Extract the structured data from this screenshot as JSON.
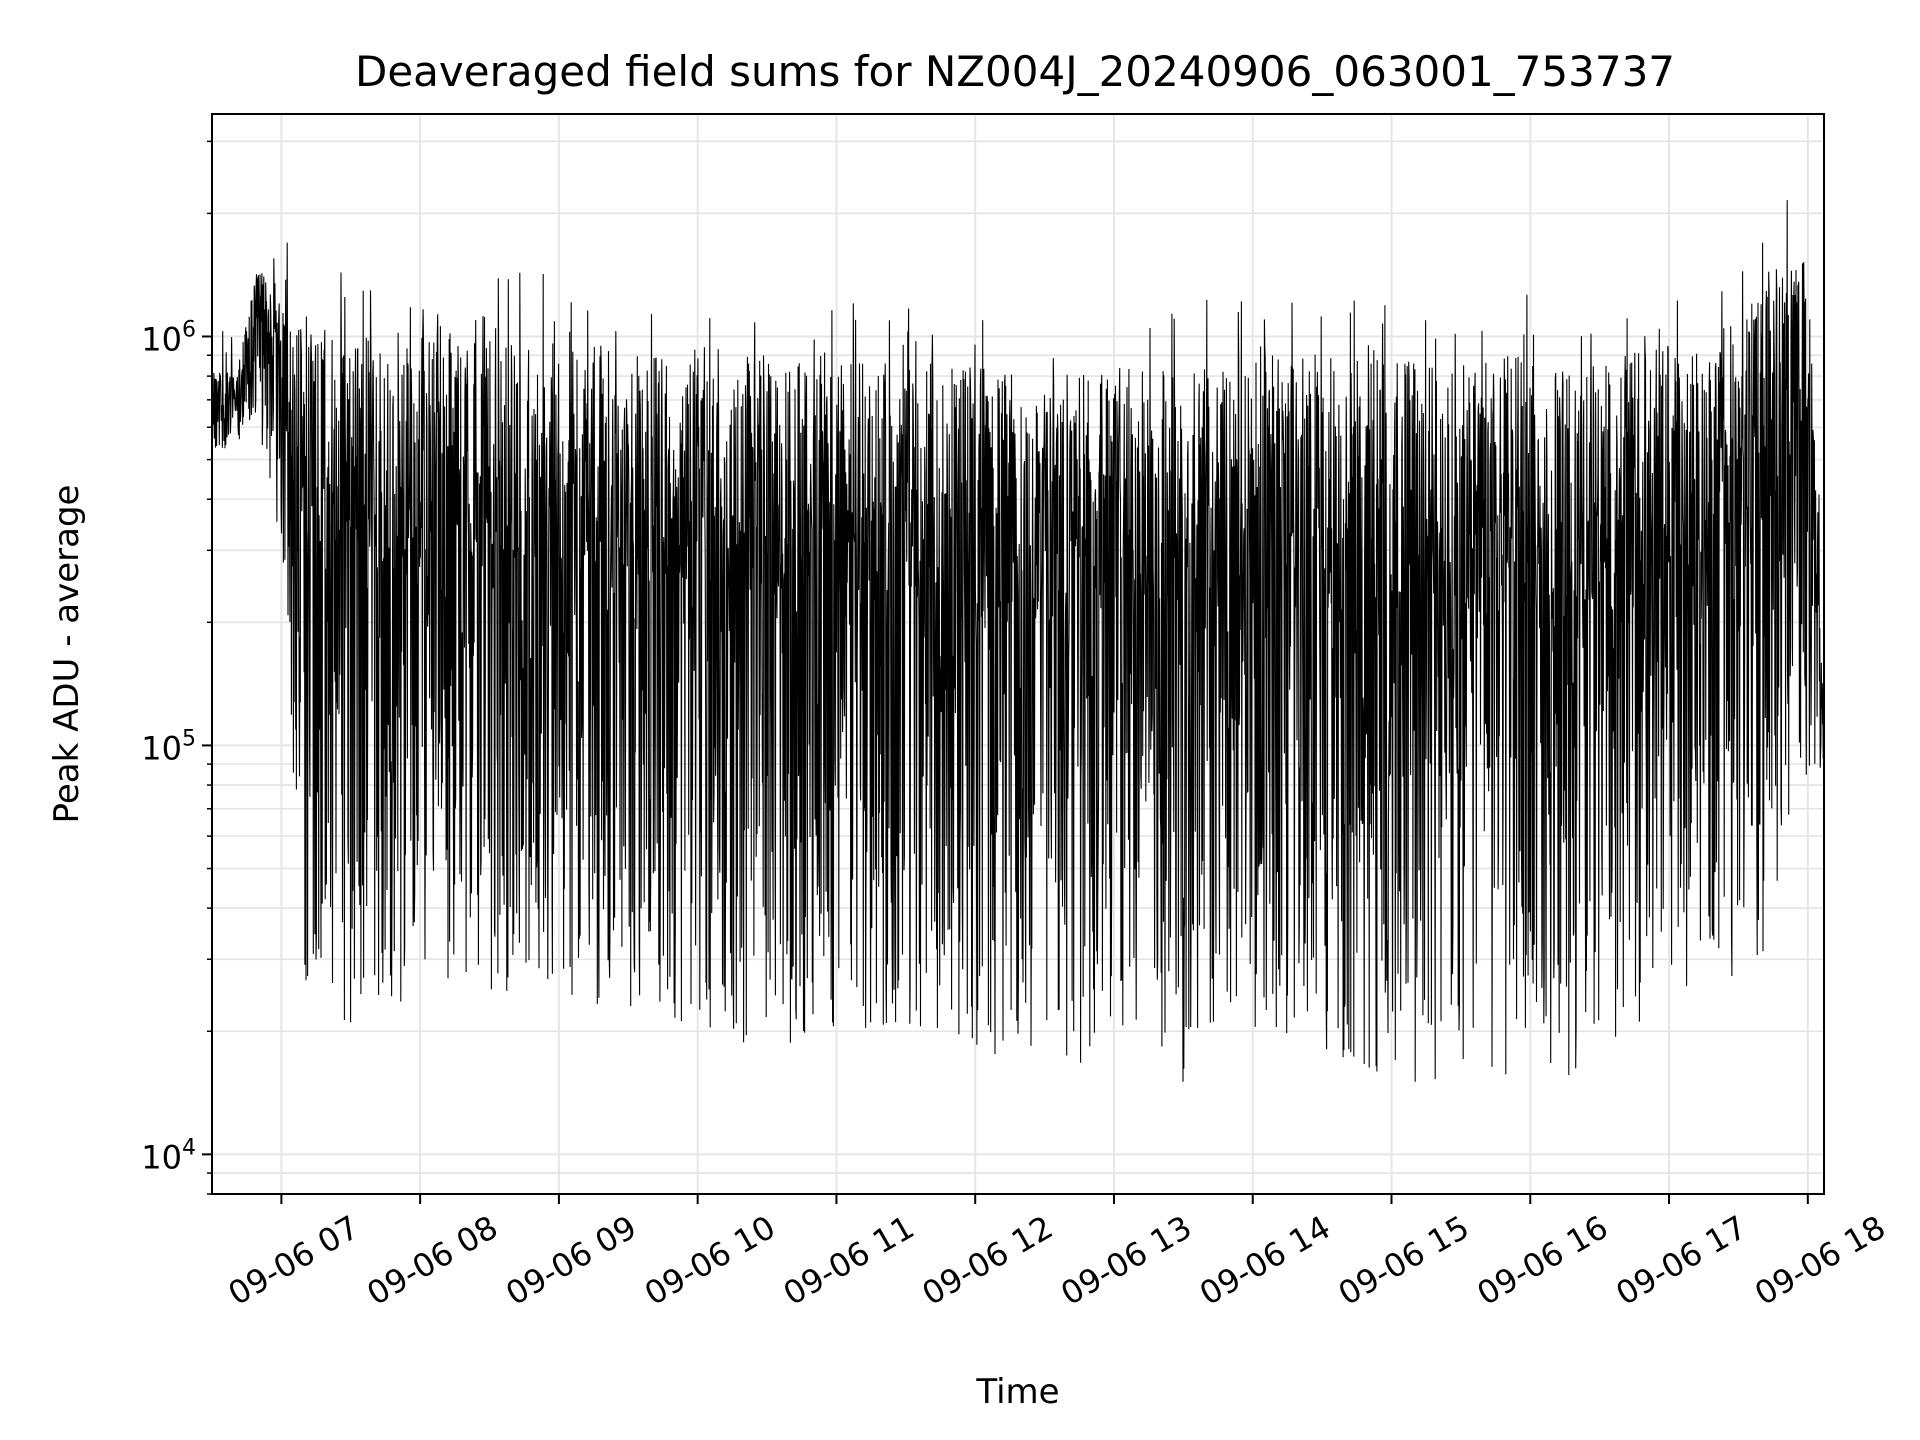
{
  "chart_data": {
    "type": "line",
    "title": "Deaveraged field sums for NZ004J_20240906_063001_753737",
    "xlabel": "Time",
    "ylabel": "Peak ADU - average",
    "yscale": "log",
    "ylim": [
      8000,
      3500000
    ],
    "xlim": [
      "2024-09-06 06:30",
      "2024-09-06 18:07"
    ],
    "grid": true,
    "line_color": "#000000",
    "grid_color": "#e6e6e6",
    "x_ticks": [
      {
        "value": "2024-09-06 07:00",
        "label": "09-06 07"
      },
      {
        "value": "2024-09-06 08:00",
        "label": "09-06 08"
      },
      {
        "value": "2024-09-06 09:00",
        "label": "09-06 09"
      },
      {
        "value": "2024-09-06 10:00",
        "label": "09-06 10"
      },
      {
        "value": "2024-09-06 11:00",
        "label": "09-06 11"
      },
      {
        "value": "2024-09-06 12:00",
        "label": "09-06 12"
      },
      {
        "value": "2024-09-06 13:00",
        "label": "09-06 13"
      },
      {
        "value": "2024-09-06 14:00",
        "label": "09-06 14"
      },
      {
        "value": "2024-09-06 15:00",
        "label": "09-06 15"
      },
      {
        "value": "2024-09-06 16:00",
        "label": "09-06 16"
      },
      {
        "value": "2024-09-06 17:00",
        "label": "09-06 17"
      },
      {
        "value": "2024-09-06 18:00",
        "label": "09-06 18"
      }
    ],
    "y_ticks": [
      {
        "value": 10000,
        "base": "10",
        "exp": "4"
      },
      {
        "value": 100000,
        "base": "10",
        "exp": "5"
      },
      {
        "value": 1000000,
        "base": "10",
        "exp": "6"
      }
    ],
    "series": [
      {
        "values_envelope": {
          "time": [
            "06:30",
            "06:40",
            "06:50",
            "07:00",
            "07:10",
            "07:30",
            "08:00",
            "08:30",
            "09:00",
            "09:30",
            "10:00",
            "10:30",
            "11:00",
            "11:30",
            "12:00",
            "12:30",
            "13:00",
            "13:30",
            "14:00",
            "14:30",
            "15:00",
            "15:30",
            "16:00",
            "16:30",
            "17:00",
            "17:20",
            "17:40",
            "18:00",
            "18:07"
          ],
          "high": [
            850000,
            800000,
            1500000,
            1300000,
            1000000,
            1050000,
            1000000,
            1100000,
            1000000,
            950000,
            950000,
            900000,
            900000,
            880000,
            850000,
            800000,
            830000,
            860000,
            900000,
            920000,
            880000,
            860000,
            900000,
            900000,
            950000,
            1000000,
            1300000,
            2000000,
            130000
          ],
          "low": [
            500000,
            550000,
            600000,
            300000,
            25000,
            20000,
            25000,
            25000,
            25000,
            22000,
            20000,
            18000,
            20000,
            20000,
            18000,
            15000,
            18000,
            15000,
            20000,
            18000,
            15000,
            15000,
            15000,
            16000,
            25000,
            25000,
            30000,
            80000,
            90000
          ]
        }
      }
    ]
  }
}
